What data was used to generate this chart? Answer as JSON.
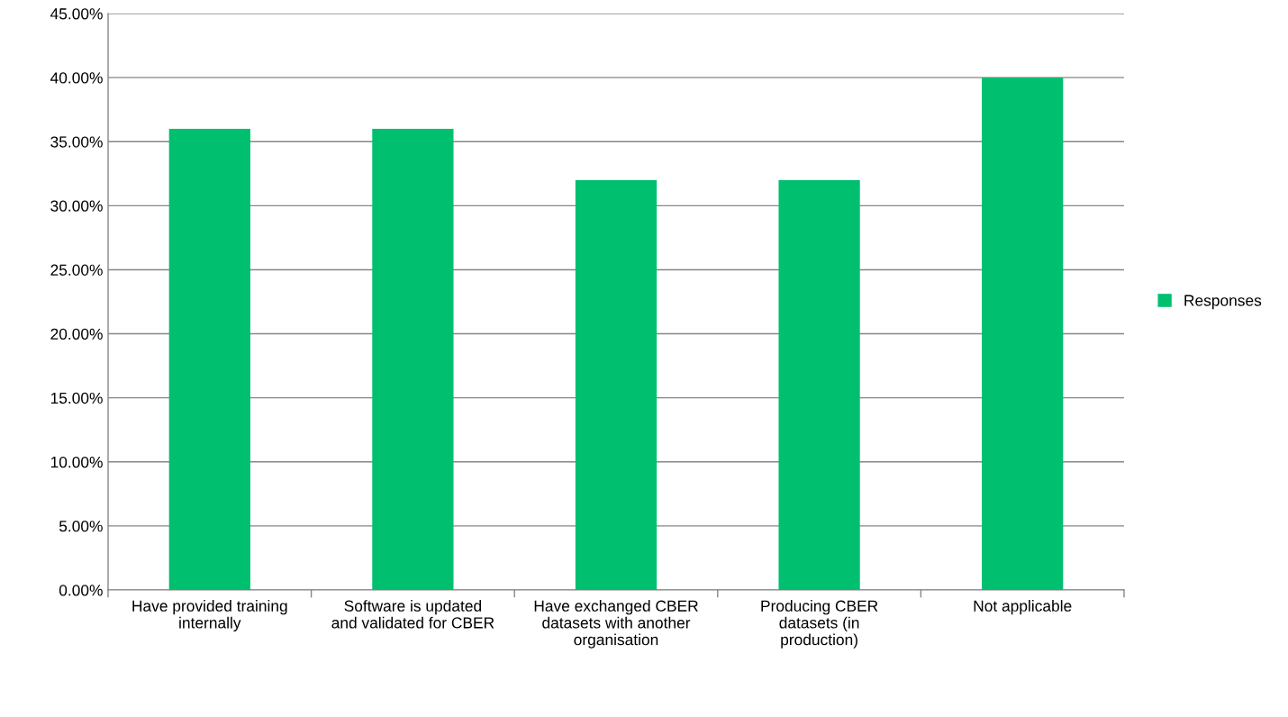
{
  "chart_data": {
    "type": "bar",
    "categories": [
      "Have provided training internally",
      "Software is updated and validated for CBER",
      "Have exchanged CBER datasets with another organisation",
      "Producing CBER datasets (in production)",
      "Not applicable"
    ],
    "series": [
      {
        "name": "Responses",
        "color": "#00bf6f",
        "values": [
          36,
          36,
          32,
          32,
          40
        ]
      }
    ],
    "ylim": [
      0,
      45
    ],
    "yticks": [
      {
        "value": 0,
        "label": "0.00%"
      },
      {
        "value": 5,
        "label": "5.00%"
      },
      {
        "value": 10,
        "label": "10.00%"
      },
      {
        "value": 15,
        "label": "15.00%"
      },
      {
        "value": 20,
        "label": "20.00%"
      },
      {
        "value": 25,
        "label": "25.00%"
      },
      {
        "value": 30,
        "label": "30.00%"
      },
      {
        "value": 35,
        "label": "35.00%"
      },
      {
        "value": 40,
        "label": "40.00%"
      },
      {
        "value": 45,
        "label": "45.00%"
      }
    ],
    "grid": "y",
    "legend": "right"
  }
}
